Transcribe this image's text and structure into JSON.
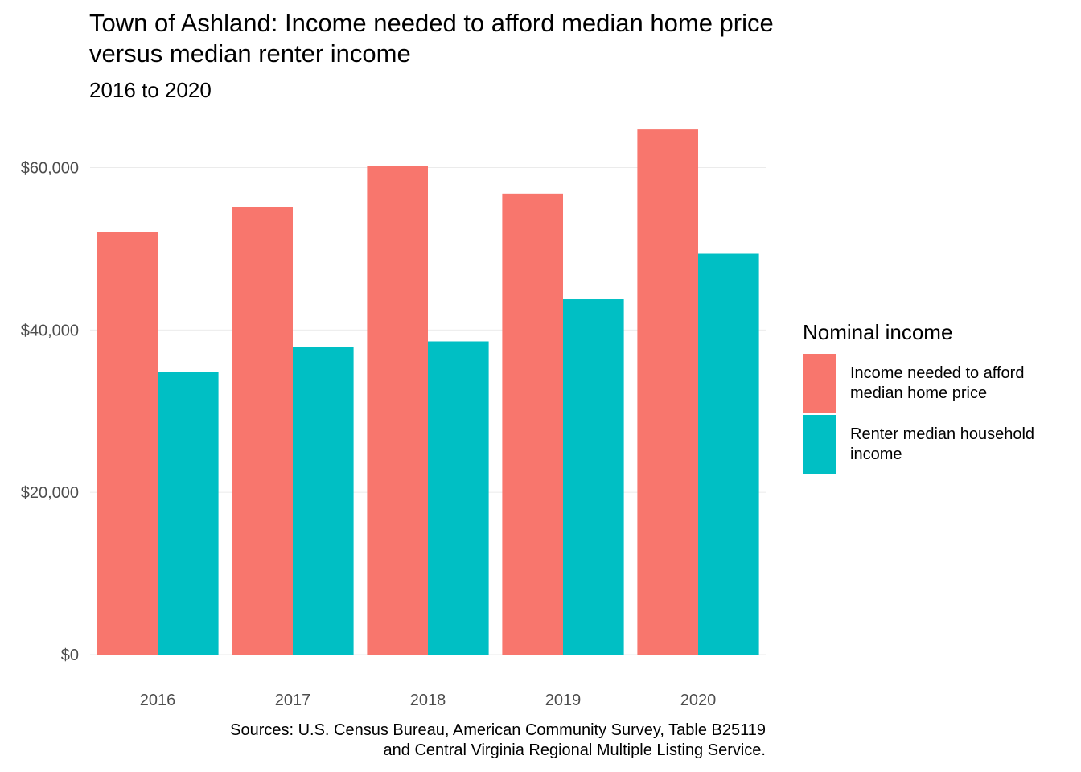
{
  "chart_data": {
    "type": "bar",
    "title": "Town of Ashland: Income needed to afford median home price\nversus median renter income",
    "subtitle": "2016 to 2020",
    "caption_lines": [
      "Sources: U.S. Census Bureau, American Community Survey, Table B25119",
      "and Central Virginia Regional Multiple Listing Service."
    ],
    "categories": [
      "2016",
      "2017",
      "2018",
      "2019",
      "2020"
    ],
    "series": [
      {
        "name": "Income needed to afford median home price",
        "color": "#F8766D",
        "values": [
          52100,
          55100,
          60200,
          56800,
          64700
        ]
      },
      {
        "name": "Renter median household income",
        "color": "#00BFC4",
        "values": [
          34800,
          37900,
          38600,
          43800,
          49400
        ]
      }
    ],
    "legend_title": "Nominal income",
    "legend_labels": [
      "Income needed to afford\nmedian home price",
      "Renter median household\nincome"
    ],
    "ylim": [
      0,
      66000
    ],
    "yticks": [
      0,
      20000,
      40000,
      60000
    ],
    "ytick_labels": [
      "$0",
      "$20,000",
      "$40,000",
      "$60,000"
    ],
    "xlabel": "",
    "ylabel": "",
    "grid": true,
    "legend_position": "right"
  }
}
